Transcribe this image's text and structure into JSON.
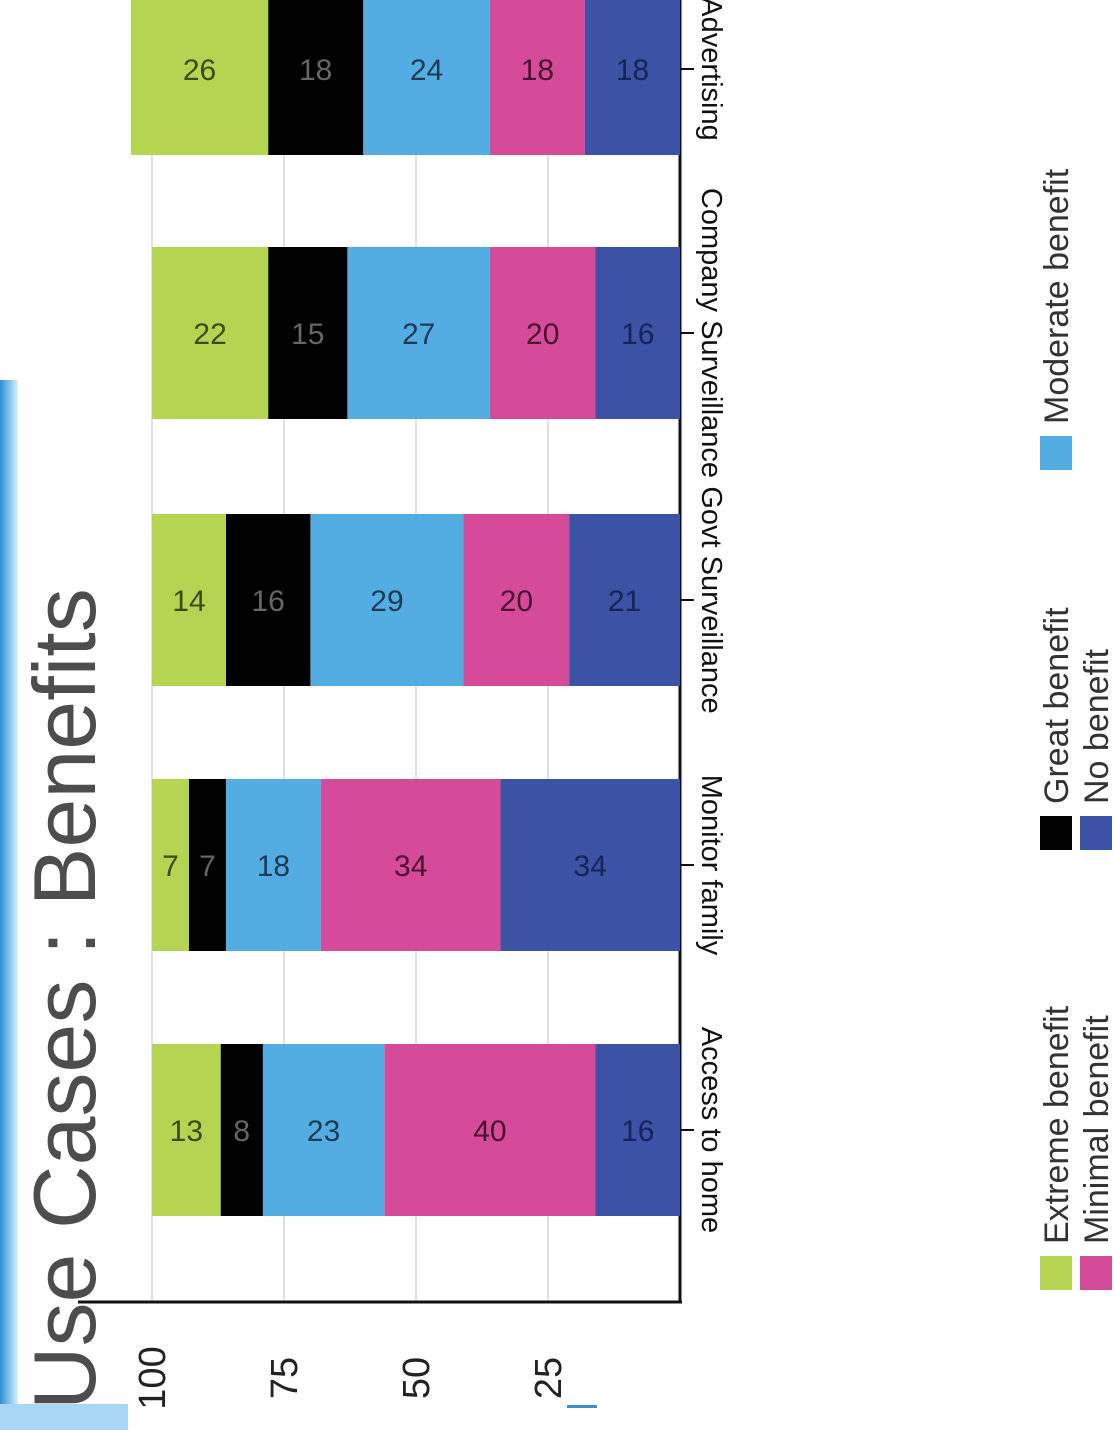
{
  "slide": {
    "title": "Use Cases : Benefits"
  },
  "chart_data": {
    "type": "bar",
    "stacked": true,
    "orientation": "vertical-columns-rotated",
    "categories": [
      "Access to home",
      "Monitor family",
      "Govt Surveillance",
      "Company Surveillance",
      "Advertising"
    ],
    "series": [
      {
        "name": "No benefit",
        "color": "#3b52a5",
        "label_color": "#16245a",
        "values": [
          16,
          34,
          21,
          16,
          18
        ]
      },
      {
        "name": "Minimal benefit",
        "color": "#d64a9a",
        "label_color": "#4a1030",
        "values": [
          40,
          34,
          20,
          20,
          18
        ]
      },
      {
        "name": "Moderate benefit",
        "color": "#54ade2",
        "label_color": "#1c3a55",
        "values": [
          23,
          18,
          29,
          27,
          24
        ]
      },
      {
        "name": "Great benefit",
        "color": "#000000",
        "label_color": "#666666",
        "values": [
          8,
          7,
          16,
          15,
          18
        ]
      },
      {
        "name": "Extreme benefit",
        "color": "#b5d452",
        "label_color": "#3d4a14",
        "values": [
          13,
          7,
          14,
          22,
          26
        ]
      }
    ],
    "y_ticks": [
      "100",
      "75",
      "50",
      "25"
    ],
    "ylim": [
      0,
      104
    ],
    "grid": true,
    "legend": {
      "placement": "bottom",
      "order": [
        "Extreme benefit",
        "Great benefit",
        "Moderate benefit",
        "Minimal benefit",
        "No benefit"
      ]
    }
  }
}
